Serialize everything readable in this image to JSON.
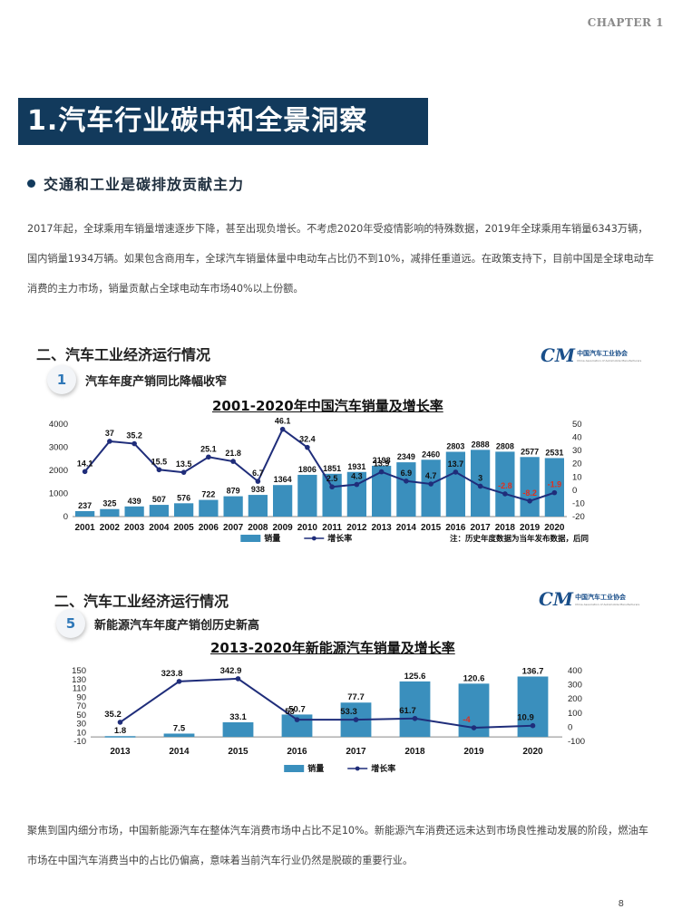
{
  "header": {
    "chapter": "CHAPTER 1"
  },
  "banner": {
    "title": "1.汽车行业碳中和全景洞察"
  },
  "bullet": {
    "label": "交通和工业是碳排放贡献主力"
  },
  "intro_paragraph": "2017年起，全球乘用车销量增速逐步下降，甚至出现负增长。不考虑2020年受疫情影响的特殊数据，2019年全球乘用车销量6343万辆，国内销量1934万辆。如果包含商用车，全球汽车销量体量中电动车占比仍不到10%，减排任重道远。在政策支持下，目前中国是全球电动车消费的主力市场，销量贡献占全球电动车市场40%以上份额。",
  "closing_paragraph": "聚焦到国内细分市场，中国新能源汽车在整体汽车消费市场中占比不足10%。新能源汽车消费还远未达到市场良性推动发展的阶段，燃油车市场在中国汽车消费当中的占比仍偏高，意味着当前汽车行业仍然是脱碳的重要行业。",
  "page_marker": "8",
  "panel1": {
    "section": "二、汽车工业经济运行情况",
    "logo_cn": "中国汽车工业协会",
    "logo_en": "China Association of Automobile Manufacturers",
    "number": "1",
    "subtitle": "汽车年度产销同比降幅收窄"
  },
  "panel2": {
    "section": "二、汽车工业经济运行情况",
    "logo_cn": "中国汽车工业协会",
    "logo_en": "China Association of Automobile Manufacturers",
    "number": "5",
    "subtitle": "新能源汽车年度产销创历史新高"
  },
  "colors": {
    "banner": "#123a5c",
    "bar": "#3a8fbd",
    "line": "#1f2d7a",
    "negative": "#e0301e"
  },
  "chart_data": [
    {
      "type": "bar",
      "title": "2001-2020年中国汽车销量及增长率",
      "categories": [
        "2001",
        "2002",
        "2003",
        "2004",
        "2005",
        "2006",
        "2007",
        "2008",
        "2009",
        "2010",
        "2011",
        "2012",
        "2013",
        "2014",
        "2015",
        "2016",
        "2017",
        "2018",
        "2019",
        "2020"
      ],
      "series": [
        {
          "name": "销量",
          "type": "bar",
          "axis": "left",
          "values": [
            237,
            325,
            439,
            507,
            576,
            722,
            879,
            938,
            1364,
            1806,
            1851,
            1931,
            2198,
            2349,
            2460,
            2803,
            2888,
            2808,
            2577,
            2531
          ]
        },
        {
          "name": "增长率",
          "type": "line",
          "axis": "right",
          "values": [
            14.1,
            37,
            35.2,
            15.5,
            13.5,
            25.1,
            21.8,
            6.7,
            46.1,
            32.4,
            2.5,
            4.3,
            13.9,
            6.9,
            4.7,
            13.7,
            3,
            -2.8,
            -8.2,
            -1.9
          ]
        }
      ],
      "ylim_left": [
        0,
        4000
      ],
      "yticks_left": [
        0,
        1000,
        2000,
        3000,
        4000
      ],
      "ylim_right": [
        -20,
        50
      ],
      "yticks_right": [
        -20,
        -10,
        0,
        10,
        20,
        30,
        40,
        50
      ],
      "legend": [
        "销量",
        "增长率"
      ],
      "legend_position": "bottom",
      "note": "注：历史年度数据为当年发布数据，后同"
    },
    {
      "type": "bar",
      "title": "2013-2020年新能源汽车销量及增长率",
      "categories": [
        "2013",
        "2014",
        "2015",
        "2016",
        "2017",
        "2018",
        "2019",
        "2020"
      ],
      "series": [
        {
          "name": "销量",
          "type": "bar",
          "axis": "left",
          "values": [
            1.8,
            7.5,
            33.1,
            50.7,
            77.7,
            125.6,
            120.6,
            136.7
          ]
        },
        {
          "name": "增长率",
          "type": "line",
          "axis": "right",
          "values": [
            35.2,
            323.8,
            342.9,
            53.0,
            53.3,
            61.7,
            -4.0,
            10.9
          ]
        }
      ],
      "ylim_left": [
        -10,
        150
      ],
      "yticks_left": [
        -10,
        10,
        30,
        50,
        70,
        90,
        110,
        130,
        150
      ],
      "ylim_right": [
        -100,
        400
      ],
      "yticks_right": [
        -100,
        0,
        100,
        200,
        300,
        400
      ],
      "legend": [
        "销量",
        "增长率"
      ],
      "legend_position": "bottom"
    }
  ]
}
